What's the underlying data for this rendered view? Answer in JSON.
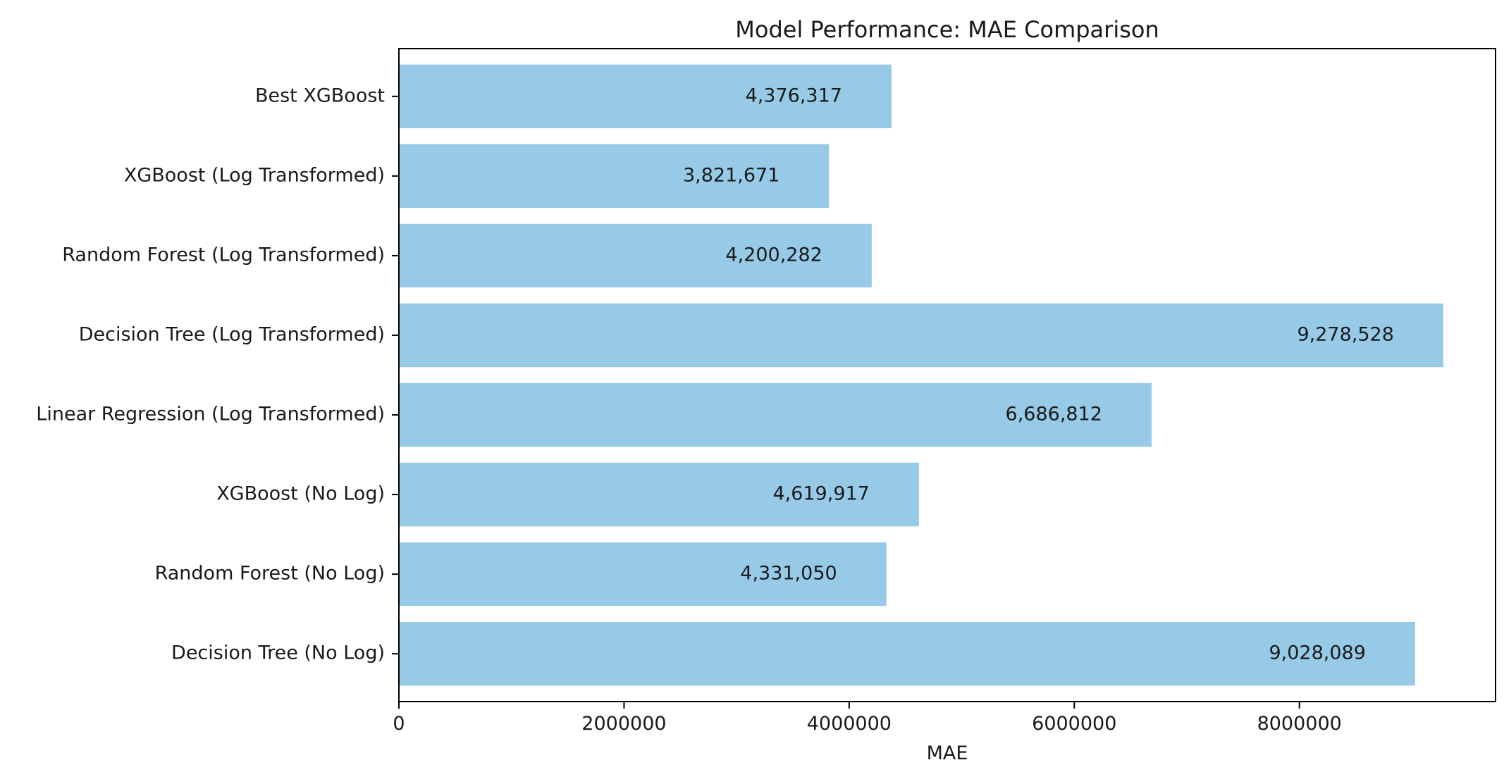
{
  "chart_data": {
    "type": "bar",
    "orientation": "horizontal",
    "title": "Model Performance: MAE Comparison",
    "xlabel": "MAE",
    "ylabel": "",
    "xlim": [
      0,
      9742454
    ],
    "grid": false,
    "bar_color": "#97CAE7",
    "categories": [
      "Decision Tree (No Log)",
      "Random Forest (No Log)",
      "XGBoost (No Log)",
      "Linear Regression (Log Transformed)",
      "Decision Tree (Log Transformed)",
      "Random Forest (Log Transformed)",
      "XGBoost (Log Transformed)",
      "Best XGBoost"
    ],
    "values": [
      9028089,
      4331050,
      4619917,
      6686812,
      9278528,
      4200282,
      3821671,
      4376317
    ],
    "data_labels": [
      "9,028,089",
      "4,331,050",
      "4,619,917",
      "6,686,812",
      "9,278,528",
      "4,200,282",
      "3,821,671",
      "4,376,317"
    ],
    "x_ticks": [
      0,
      2000000,
      4000000,
      6000000,
      8000000
    ],
    "x_tick_labels": [
      "0",
      "2000000",
      "4000000",
      "6000000",
      "8000000"
    ]
  }
}
